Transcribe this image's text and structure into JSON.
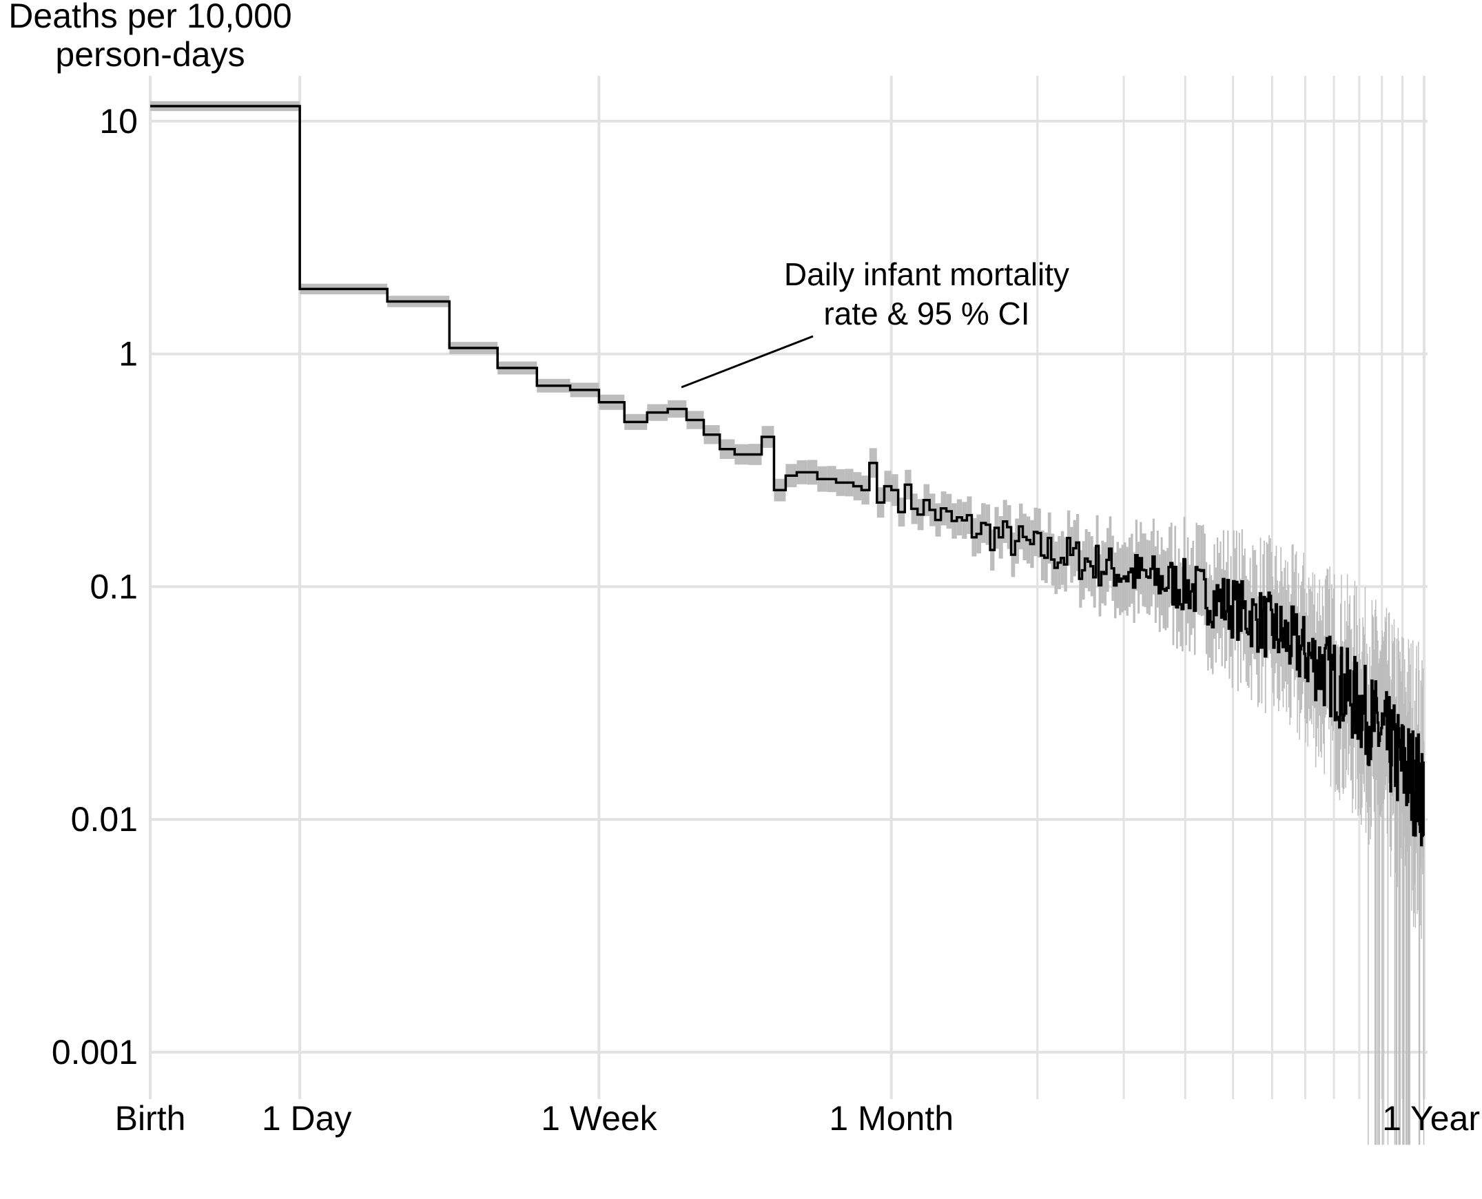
{
  "chart_data": {
    "type": "line",
    "title": "",
    "xlabel": "",
    "ylabel_lines": [
      "Deaths per 10,000",
      "person-days"
    ],
    "y_scale": "log",
    "x_scale": "log(1 + age in days)",
    "ylim": [
      0.001,
      12
    ],
    "xlim_days": [
      0,
      365
    ],
    "y_ticks": [
      {
        "value": 10,
        "label": "10"
      },
      {
        "value": 1,
        "label": "1"
      },
      {
        "value": 0.1,
        "label": "0.1"
      },
      {
        "value": 0.01,
        "label": "0.01"
      },
      {
        "value": 0.001,
        "label": "0.001"
      }
    ],
    "x_ticks": [
      {
        "day": 0,
        "label": "Birth"
      },
      {
        "day": 1,
        "label": "1 Day"
      },
      {
        "day": 7,
        "label": "1 Week"
      },
      {
        "day": 30,
        "label": "1 Month"
      },
      {
        "day": 365,
        "label": "1 Year"
      }
    ],
    "x_minor_gridlines_days": [
      60,
      90,
      120,
      150,
      180,
      210,
      240,
      270,
      300,
      330
    ],
    "annotation": {
      "lines": [
        "Daily infant mortality",
        "rate & 95 % CI"
      ],
      "points_to_day": 10.5
    },
    "series": [
      {
        "name": "Daily infant mortality rate",
        "step_segments": [
          {
            "from_day": 0,
            "to_day": 1,
            "rate": 11.6
          },
          {
            "from_day": 1,
            "to_day": 2,
            "rate": 1.9
          },
          {
            "from_day": 2,
            "to_day": 3,
            "rate": 1.68
          },
          {
            "from_day": 3,
            "to_day": 4,
            "rate": 1.06
          },
          {
            "from_day": 4,
            "to_day": 5,
            "rate": 0.87
          },
          {
            "from_day": 5,
            "to_day": 6,
            "rate": 0.73
          },
          {
            "from_day": 6,
            "to_day": 7,
            "rate": 0.7
          },
          {
            "from_day": 7,
            "to_day": 8,
            "rate": 0.62
          },
          {
            "from_day": 8,
            "to_day": 9,
            "rate": 0.51
          },
          {
            "from_day": 9,
            "to_day": 10,
            "rate": 0.56
          },
          {
            "from_day": 10,
            "to_day": 11,
            "rate": 0.58
          },
          {
            "from_day": 11,
            "to_day": 12,
            "rate": 0.52
          },
          {
            "from_day": 12,
            "to_day": 13,
            "rate": 0.45
          },
          {
            "from_day": 13,
            "to_day": 14,
            "rate": 0.39
          },
          {
            "from_day": 14,
            "to_day": 15,
            "rate": 0.37
          },
          {
            "from_day": 15,
            "to_day": 16,
            "rate": 0.37
          },
          {
            "from_day": 16,
            "to_day": 17,
            "rate": 0.44
          },
          {
            "from_day": 17,
            "to_day": 18,
            "rate": 0.26
          },
          {
            "from_day": 18,
            "to_day": 19,
            "rate": 0.3
          },
          {
            "from_day": 19,
            "to_day": 20,
            "rate": 0.31
          },
          {
            "from_day": 20,
            "to_day": 21,
            "rate": 0.31
          },
          {
            "from_day": 21,
            "to_day": 22,
            "rate": 0.29
          },
          {
            "from_day": 22,
            "to_day": 23,
            "rate": 0.29
          },
          {
            "from_day": 23,
            "to_day": 24,
            "rate": 0.28
          },
          {
            "from_day": 24,
            "to_day": 25,
            "rate": 0.28
          },
          {
            "from_day": 25,
            "to_day": 26,
            "rate": 0.27
          },
          {
            "from_day": 26,
            "to_day": 27,
            "rate": 0.26
          },
          {
            "from_day": 27,
            "to_day": 28,
            "rate": 0.34
          },
          {
            "from_day": 28,
            "to_day": 29,
            "rate": 0.23
          },
          {
            "from_day": 29,
            "to_day": 30,
            "rate": 0.27
          },
          {
            "from_day": 30,
            "to_day": 31,
            "rate": 0.26
          }
        ],
        "later_trend": [
          {
            "day": 31,
            "rate": 0.25
          },
          {
            "day": 40,
            "rate": 0.19
          },
          {
            "day": 60,
            "rate": 0.145
          },
          {
            "day": 90,
            "rate": 0.115
          },
          {
            "day": 120,
            "rate": 0.1
          },
          {
            "day": 150,
            "rate": 0.082
          },
          {
            "day": 180,
            "rate": 0.066
          },
          {
            "day": 210,
            "rate": 0.052
          },
          {
            "day": 240,
            "rate": 0.04
          },
          {
            "day": 270,
            "rate": 0.031
          },
          {
            "day": 300,
            "rate": 0.023
          },
          {
            "day": 330,
            "rate": 0.017
          },
          {
            "day": 365,
            "rate": 0.013
          }
        ]
      }
    ],
    "colors": {
      "line": "#000000",
      "ci_band": "#bdbdbd",
      "grid": "#e2e2e2"
    }
  }
}
